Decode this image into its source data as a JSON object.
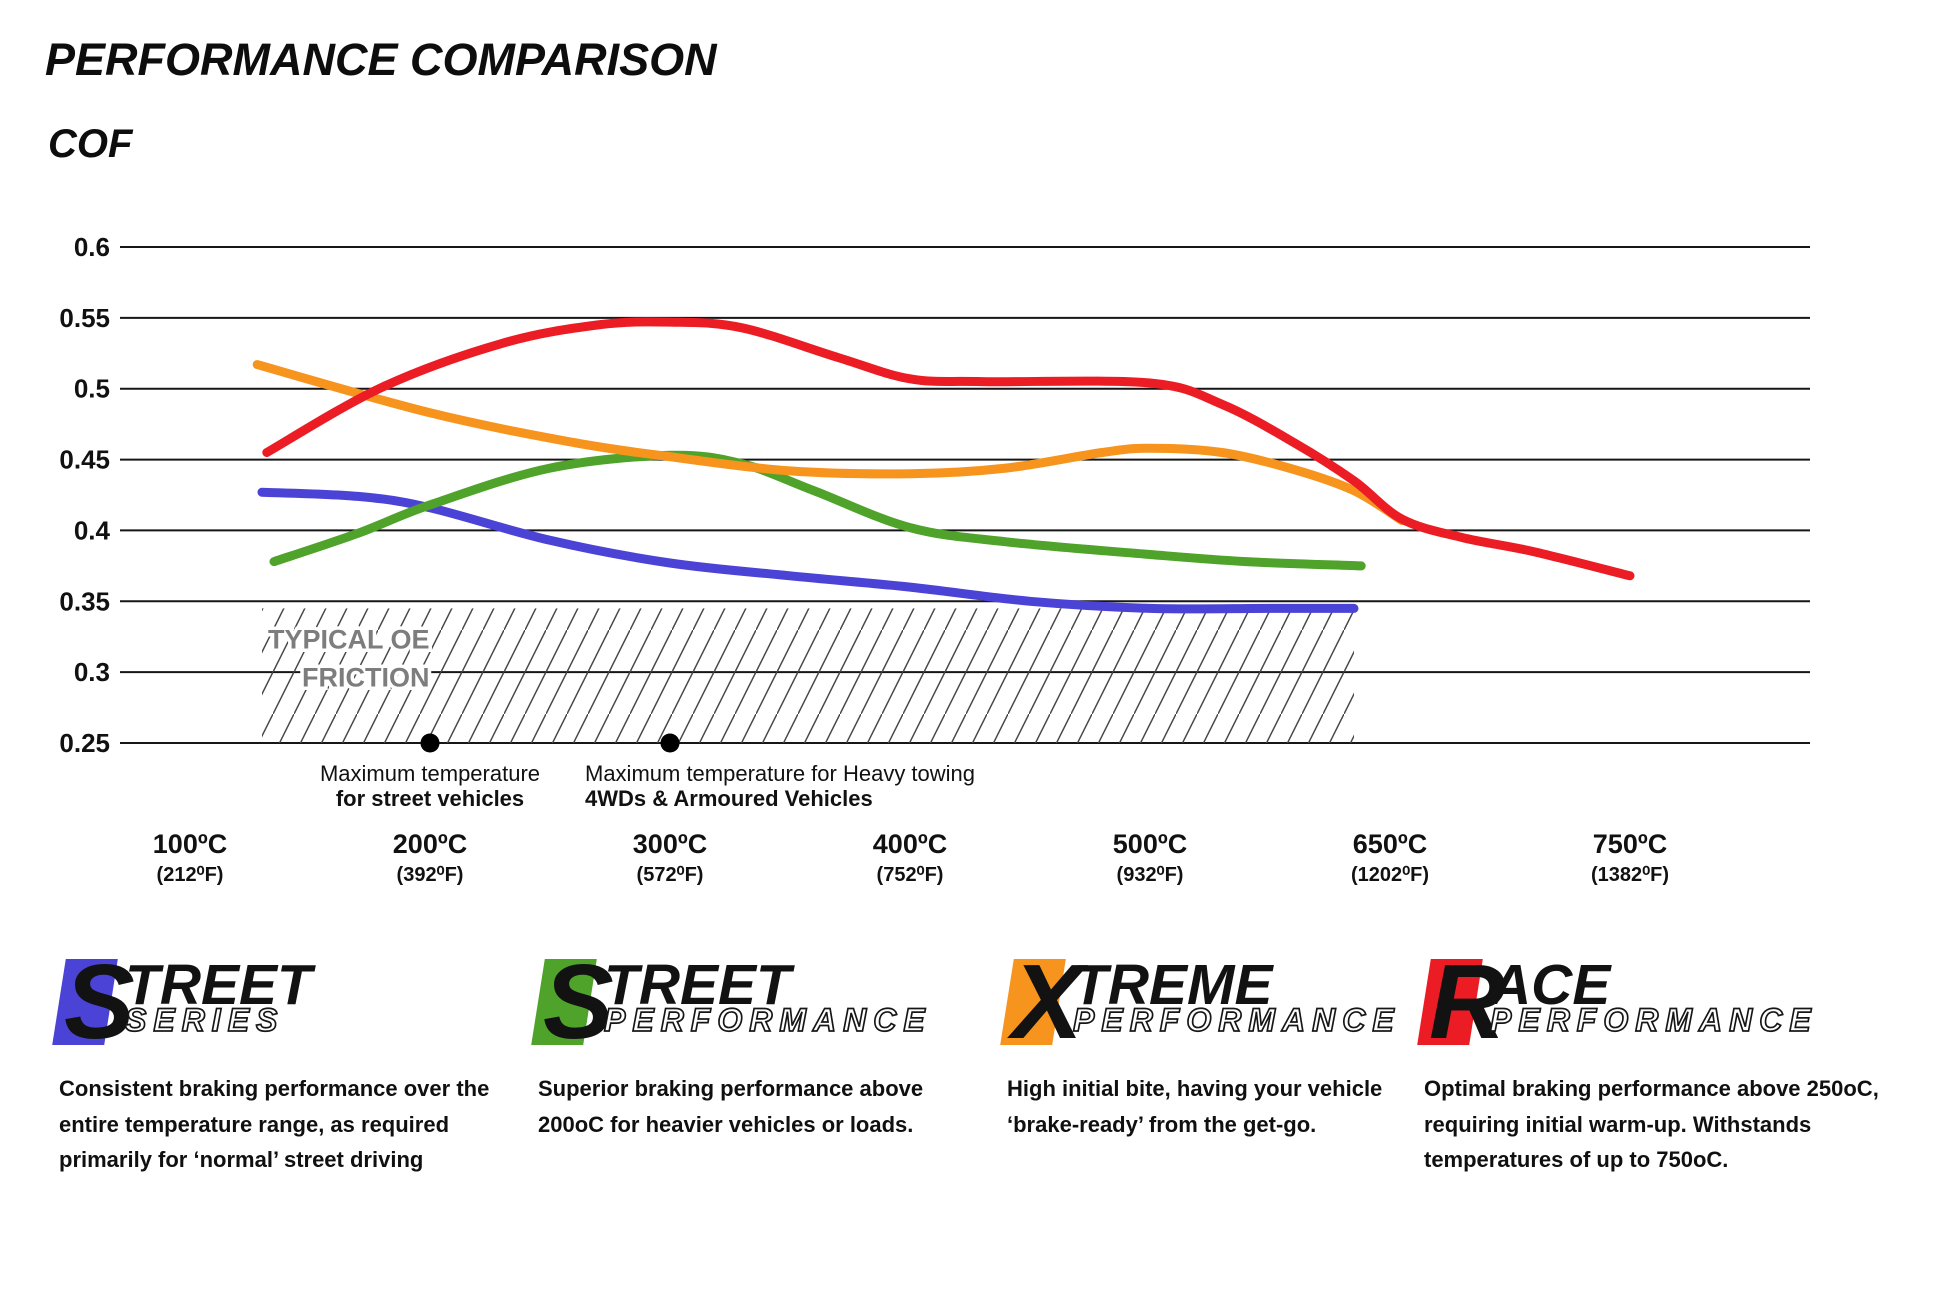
{
  "title": "PERFORMANCE COMPARISON",
  "axis_title": "COF",
  "chart_data": {
    "type": "line",
    "title": "PERFORMANCE COMPARISON",
    "ylabel": "COF",
    "ylim": [
      0.25,
      0.6
    ],
    "grid": true,
    "legend_position": "bottom",
    "y_ticks": [
      "0.6",
      "0.55",
      "0.5",
      "0.45",
      "0.4",
      "0.35",
      "0.3",
      "0.25"
    ],
    "y_tick_values": [
      0.6,
      0.55,
      0.5,
      0.45,
      0.4,
      0.35,
      0.3,
      0.25
    ],
    "x_ticks": [
      {
        "c": "100ºC",
        "f": "(212⁰F)"
      },
      {
        "c": "200ºC",
        "f": "(392⁰F)"
      },
      {
        "c": "300ºC",
        "f": "(572⁰F)"
      },
      {
        "c": "400ºC",
        "f": "(752⁰F)"
      },
      {
        "c": "500ºC",
        "f": "(932⁰F)"
      },
      {
        "c": "650ºC",
        "f": "(1202⁰F)"
      },
      {
        "c": "750ºC",
        "f": "(1382⁰F)"
      }
    ],
    "series": [
      {
        "name": "Street Series",
        "color": "#4b43d6",
        "points": [
          [
            0.3,
            0.427
          ],
          [
            0.7,
            0.424
          ],
          [
            1,
            0.416
          ],
          [
            1.5,
            0.393
          ],
          [
            2,
            0.377
          ],
          [
            2.5,
            0.368
          ],
          [
            3,
            0.36
          ],
          [
            3.5,
            0.35
          ],
          [
            4,
            0.345
          ],
          [
            4.5,
            0.345
          ],
          [
            4.85,
            0.345
          ]
        ]
      },
      {
        "name": "Street Performance",
        "color": "#4fa32a",
        "points": [
          [
            0.35,
            0.378
          ],
          [
            0.7,
            0.398
          ],
          [
            1,
            0.418
          ],
          [
            1.5,
            0.444
          ],
          [
            2,
            0.453
          ],
          [
            2.3,
            0.447
          ],
          [
            2.6,
            0.428
          ],
          [
            3,
            0.402
          ],
          [
            3.4,
            0.392
          ],
          [
            4,
            0.383
          ],
          [
            4.4,
            0.378
          ],
          [
            4.88,
            0.375
          ]
        ]
      },
      {
        "name": "Xtreme Performance",
        "color": "#f7941e",
        "points": [
          [
            0.28,
            0.517
          ],
          [
            1,
            0.483
          ],
          [
            1.6,
            0.462
          ],
          [
            2,
            0.452
          ],
          [
            2.5,
            0.442
          ],
          [
            3,
            0.44
          ],
          [
            3.4,
            0.444
          ],
          [
            3.8,
            0.455
          ],
          [
            4,
            0.458
          ],
          [
            4.3,
            0.455
          ],
          [
            4.6,
            0.443
          ],
          [
            4.85,
            0.428
          ],
          [
            5.05,
            0.407
          ]
        ]
      },
      {
        "name": "Race Performance",
        "color": "#ec1c24",
        "points": [
          [
            0.32,
            0.455
          ],
          [
            0.8,
            0.501
          ],
          [
            1.3,
            0.532
          ],
          [
            1.7,
            0.545
          ],
          [
            2,
            0.547
          ],
          [
            2.3,
            0.543
          ],
          [
            2.7,
            0.522
          ],
          [
            3,
            0.507
          ],
          [
            3.3,
            0.505
          ],
          [
            4,
            0.504
          ],
          [
            4.3,
            0.489
          ],
          [
            4.6,
            0.462
          ],
          [
            4.85,
            0.435
          ],
          [
            5.05,
            0.408
          ],
          [
            5.3,
            0.395
          ],
          [
            5.6,
            0.385
          ],
          [
            6,
            0.368
          ]
        ]
      }
    ],
    "oe_band": {
      "x_start": 0.3,
      "x_end": 4.85,
      "y_top": 0.345,
      "y_bottom": 0.25,
      "label_line1": "TYPICAL OE",
      "label_line2": "FRICTION"
    },
    "annotations": [
      {
        "x": 1,
        "align": "center",
        "line1": "Maximum temperature",
        "line2": "for street vehicles"
      },
      {
        "x": 2,
        "align": "left",
        "line1": "Maximum temperature for Heavy towing",
        "line2": "4WDs & Armoured Vehicles"
      }
    ]
  },
  "legend": [
    {
      "initial": "S",
      "rest": "TREET",
      "line2": "SERIES",
      "color": "#4b43d6",
      "description": "Consistent braking performance over the entire temperature range, as required primarily for ‘normal’ street driving"
    },
    {
      "initial": "S",
      "rest": "TREET",
      "line2": "PERFORMANCE",
      "color": "#4fa32a",
      "description": "Superior braking performance above 200oC for heavier vehicles or loads."
    },
    {
      "initial": "X",
      "rest": "TREME",
      "line2": "PERFORMANCE",
      "color": "#f7941e",
      "description": "High initial bite, having your vehicle ‘brake-ready’ from the get-go."
    },
    {
      "initial": "R",
      "rest": "ACE",
      "line2": "PERFORMANCE",
      "color": "#ec1c24",
      "description": "Optimal braking performance above 250oC, requiring initial warm-up. Withstands temperatures of up to 750oC."
    }
  ]
}
